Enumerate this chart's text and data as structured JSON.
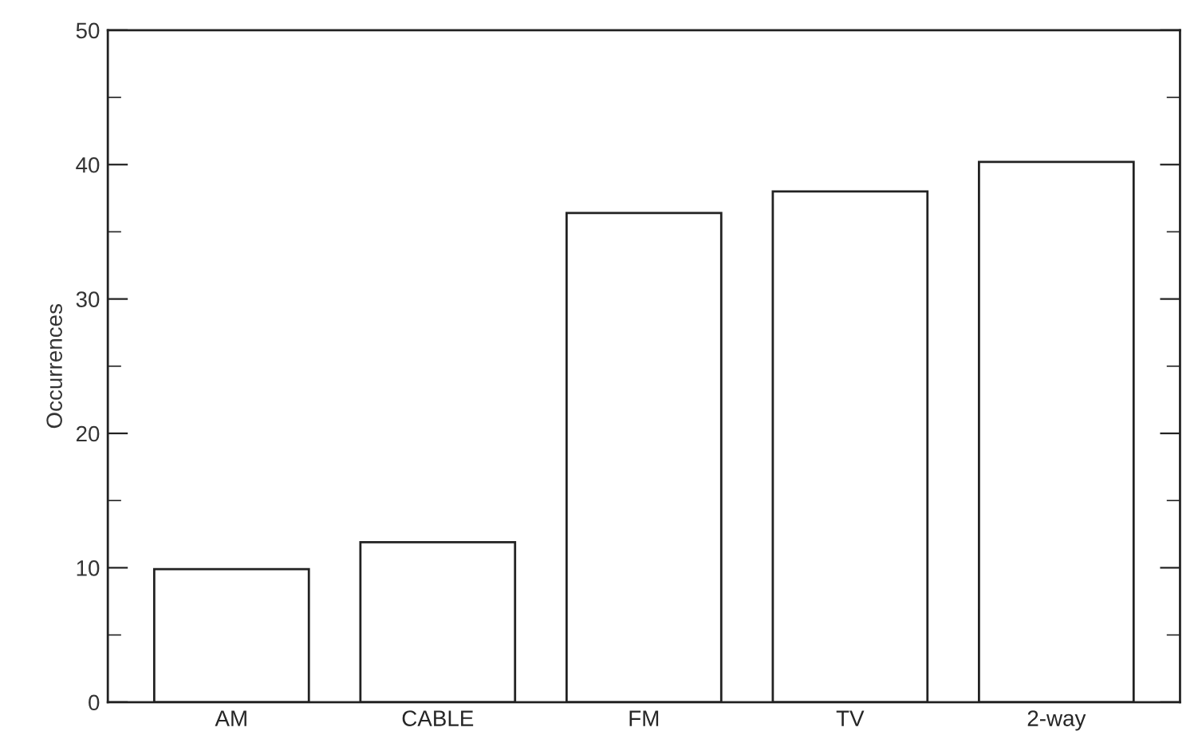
{
  "chart_data": {
    "type": "bar",
    "ylabel": "Occurrences",
    "categories": [
      "AM",
      "CABLE",
      "FM",
      "TV",
      "2-way"
    ],
    "values": [
      9.9,
      11.9,
      36.4,
      38,
      40.2
    ],
    "color": "#ffffff",
    "ylim": [
      0,
      50
    ],
    "yticks": [
      0,
      {
        "value": 5,
        "label": null
      },
      10,
      {
        "value": 15,
        "label": null
      },
      20,
      {
        "value": 25,
        "label": null
      },
      30,
      {
        "value": 35,
        "label": null
      },
      40,
      {
        "value": 45,
        "label": null
      },
      50
    ],
    "grid": false
  }
}
